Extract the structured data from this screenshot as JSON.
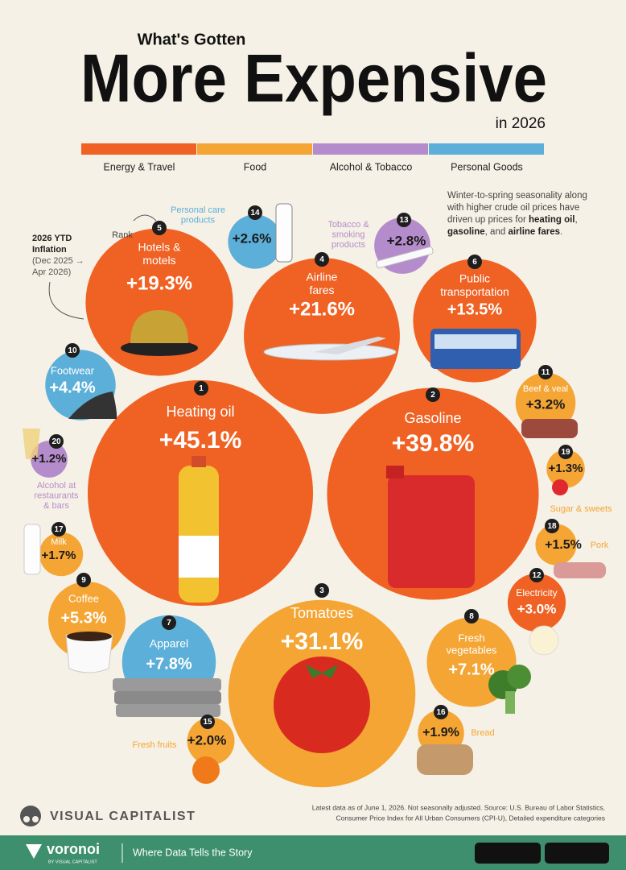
{
  "chart_data": {
    "type": "bubble",
    "pretitle": "What's Gotten",
    "title": "More Expensive",
    "subtitle": "in 2026",
    "legend": [
      {
        "name": "Energy & Travel",
        "color": "#ef6224"
      },
      {
        "name": "Food",
        "color": "#f4a534"
      },
      {
        "name": "Alcohol & Tobacco",
        "color": "#b58ccb"
      },
      {
        "name": "Personal Goods",
        "color": "#5bafd8"
      }
    ],
    "rank_note": "Rank",
    "annotation": [
      "2026 YTD",
      "Inflation",
      "(Dec 2025 →",
      "Apr 2026)"
    ],
    "note": [
      {
        "text": "Winter-to-spring seasonality along with higher crude oil prices have driven up prices for ",
        "bold": false
      },
      {
        "text": "heating oil",
        "bold": true
      },
      {
        "text": ", ",
        "bold": false
      },
      {
        "text": "gasoline",
        "bold": true
      },
      {
        "text": ", and ",
        "bold": false
      },
      {
        "text": "airline fares",
        "bold": true
      },
      {
        "text": ".",
        "bold": false
      }
    ],
    "items": [
      {
        "rank": 1,
        "label": [
          "Heating oil"
        ],
        "value": 45.1,
        "value_label": "+45.1%",
        "color": "#ef6224"
      },
      {
        "rank": 2,
        "label": [
          "Gasoline"
        ],
        "value": 39.8,
        "value_label": "+39.8%",
        "color": "#ef6224"
      },
      {
        "rank": 3,
        "label": [
          "Tomatoes"
        ],
        "value": 31.1,
        "value_label": "+31.1%",
        "color": "#f4a534"
      },
      {
        "rank": 4,
        "label": [
          "Airline",
          "fares"
        ],
        "value": 21.6,
        "value_label": "+21.6%",
        "color": "#ef6224"
      },
      {
        "rank": 5,
        "label": [
          "Hotels &",
          "motels"
        ],
        "value": 19.3,
        "value_label": "+19.3%",
        "color": "#ef6224"
      },
      {
        "rank": 6,
        "label": [
          "Public",
          "transportation"
        ],
        "value": 13.5,
        "value_label": "+13.5%",
        "color": "#ef6224"
      },
      {
        "rank": 7,
        "label": [
          "Apparel"
        ],
        "value": 7.8,
        "value_label": "+7.8%",
        "color": "#5bafd8"
      },
      {
        "rank": 8,
        "label": [
          "Fresh",
          "vegetables"
        ],
        "value": 7.1,
        "value_label": "+7.1%",
        "color": "#f4a534"
      },
      {
        "rank": 9,
        "label": [
          "Coffee"
        ],
        "value": 5.3,
        "value_label": "+5.3%",
        "color": "#f4a534"
      },
      {
        "rank": 10,
        "label": [
          "Footwear"
        ],
        "value": 4.4,
        "value_label": "+4.4%",
        "color": "#5bafd8"
      },
      {
        "rank": 11,
        "label": [
          "Beef & veal"
        ],
        "value": 3.2,
        "value_label": "+3.2%",
        "color": "#f4a534"
      },
      {
        "rank": 12,
        "label": [
          "Electricity"
        ],
        "value": 3.0,
        "value_label": "+3.0%",
        "color": "#ef6224"
      },
      {
        "rank": 13,
        "label": [
          "Tobacco &",
          "smoking",
          "products"
        ],
        "value": 2.8,
        "value_label": "+2.8%",
        "color": "#b58ccb"
      },
      {
        "rank": 14,
        "label": [
          "Personal care",
          "products"
        ],
        "value": 2.6,
        "value_label": "+2.6%",
        "color": "#5bafd8"
      },
      {
        "rank": 15,
        "label": [
          "Fresh fruits"
        ],
        "value": 2.0,
        "value_label": "+2.0%",
        "color": "#f4a534"
      },
      {
        "rank": 16,
        "label": [
          "Bread"
        ],
        "value": 1.9,
        "value_label": "+1.9%",
        "color": "#f4a534"
      },
      {
        "rank": 17,
        "label": [
          "Milk"
        ],
        "value": 1.7,
        "value_label": "+1.7%",
        "color": "#f4a534"
      },
      {
        "rank": 18,
        "label": [
          "Pork"
        ],
        "value": 1.5,
        "value_label": "+1.5%",
        "color": "#f4a534"
      },
      {
        "rank": 19,
        "label": [
          "Sugar & sweets"
        ],
        "value": 1.3,
        "value_label": "+1.3%",
        "color": "#f4a534"
      },
      {
        "rank": 20,
        "label": [
          "Alcohol at",
          "restaurants",
          "& bars"
        ],
        "value": 1.2,
        "value_label": "+1.2%",
        "color": "#b58ccb"
      }
    ],
    "source": [
      "Latest data as of June 1, 2026. Not seasonally adjusted. Source: U.S. Bureau of Labor Statistics,",
      "Consumer Price Index for All Urban Consumers (CPI-U), Detailed expenditure categories"
    ],
    "brand": "VISUAL CAPITALIST",
    "footer_brand": "voronoi",
    "footer_by": "BY VISUAL CAPITALIST",
    "tagline": "Where Data Tells the Story"
  }
}
